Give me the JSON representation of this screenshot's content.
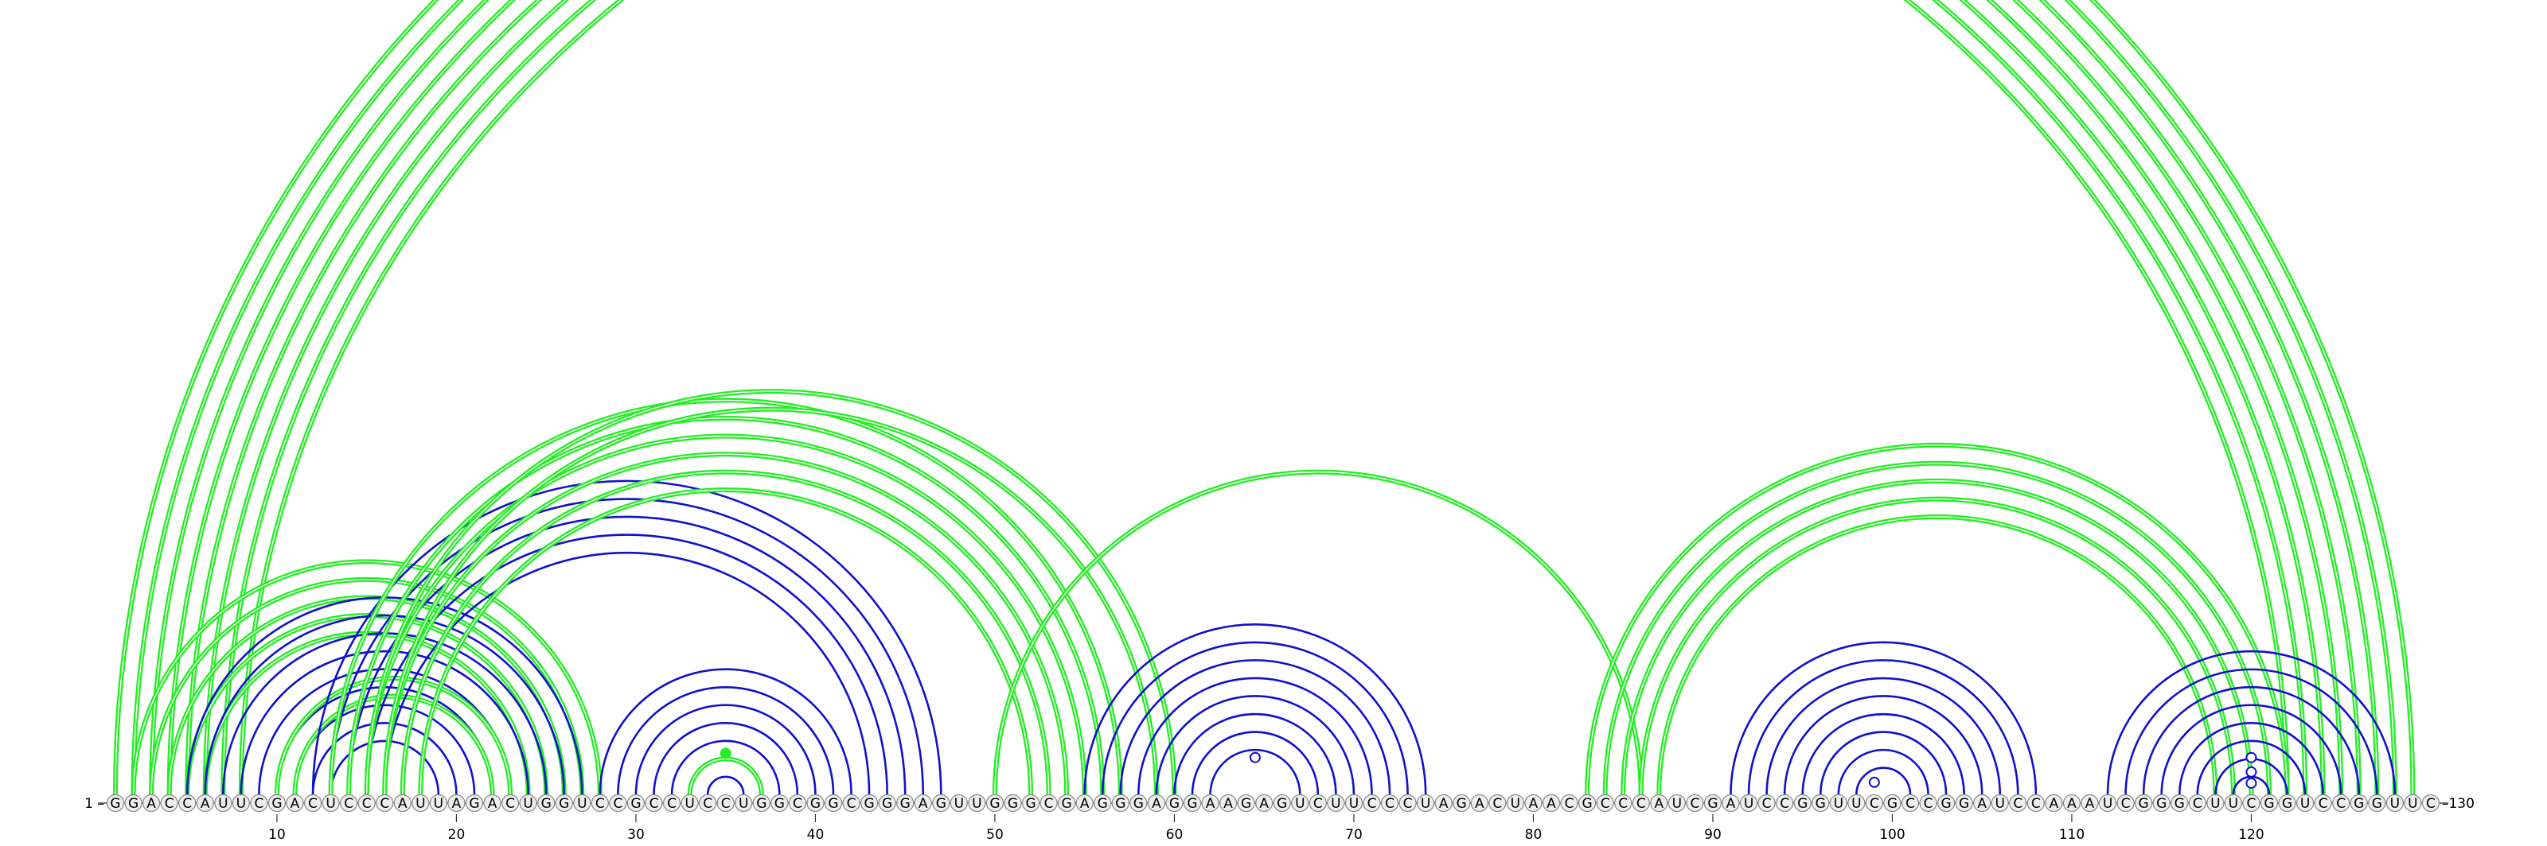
{
  "sequence": "GGACCAUUCGACUCCCAUUAGACUGGUCCGCCUCCUGGCGGCGGGAGUUGGGCGAGGGAGGAAGAGUCUUCCCUAGACUAACGCCCAUCGAUCCGGUUCGCCGGAUCCAAAUCGGGCUUCGGUCCGGUUC",
  "labels": {
    "start": "1 –",
    "end": "–130"
  },
  "ticks": [
    {
      "position": 10,
      "label": "10"
    },
    {
      "position": 20,
      "label": "20"
    },
    {
      "position": 30,
      "label": "30"
    },
    {
      "position": 40,
      "label": "40"
    },
    {
      "position": 50,
      "label": "50"
    },
    {
      "position": 60,
      "label": "60"
    },
    {
      "position": 70,
      "label": "70"
    },
    {
      "position": 80,
      "label": "80"
    },
    {
      "position": 90,
      "label": "90"
    },
    {
      "position": 100,
      "label": "100"
    },
    {
      "position": 110,
      "label": "110"
    },
    {
      "position": 120,
      "label": "120"
    }
  ],
  "colors": {
    "green": "#22ee22",
    "blue": "#1111cc",
    "node_fill": "#eeeeee",
    "node_stroke": "#888888",
    "text": "#000000"
  },
  "arc_groups": [
    {
      "color": "green",
      "double": true,
      "pairs": [
        [
          1,
          129
        ],
        [
          2,
          128
        ],
        [
          3,
          127
        ],
        [
          4,
          126
        ],
        [
          5,
          125
        ],
        [
          6,
          124
        ],
        [
          7,
          123
        ],
        [
          8,
          122
        ]
      ]
    },
    {
      "color": "green",
      "double": true,
      "pairs": [
        [
          2,
          28
        ],
        [
          3,
          27
        ],
        [
          4,
          26
        ],
        [
          5,
          25
        ],
        [
          6,
          24
        ]
      ]
    },
    {
      "color": "blue",
      "double": false,
      "pairs": [
        [
          5,
          27
        ],
        [
          6,
          26
        ],
        [
          7,
          25
        ],
        [
          8,
          24
        ],
        [
          9,
          23
        ],
        [
          10,
          22
        ],
        [
          11,
          21
        ],
        [
          12,
          20
        ],
        [
          13,
          19
        ]
      ]
    },
    {
      "color": "green",
      "double": true,
      "pairs": [
        [
          10,
          23
        ],
        [
          11,
          22
        ]
      ]
    },
    {
      "color": "blue",
      "double": false,
      "pairs": [
        [
          12,
          47
        ],
        [
          13,
          46
        ],
        [
          14,
          45
        ],
        [
          15,
          44
        ],
        [
          16,
          43
        ]
      ]
    },
    {
      "color": "green",
      "double": true,
      "pairs": [
        [
          13,
          57
        ],
        [
          14,
          56
        ],
        [
          15,
          55
        ],
        [
          16,
          54
        ],
        [
          17,
          53
        ],
        [
          18,
          52
        ]
      ]
    },
    {
      "color": "green",
      "double": true,
      "pairs": [
        [
          15,
          60
        ],
        [
          16,
          59
        ]
      ]
    },
    {
      "color": "blue",
      "double": false,
      "pairs": [
        [
          28,
          42
        ],
        [
          29,
          41
        ],
        [
          30,
          40
        ],
        [
          31,
          39
        ],
        [
          32,
          38
        ],
        [
          33,
          37
        ],
        [
          34,
          36
        ]
      ]
    },
    {
      "color": "green",
      "double": true,
      "pairs": [
        [
          33,
          37
        ]
      ]
    },
    {
      "color": "green",
      "double": true,
      "pairs": [
        [
          50,
          86
        ]
      ]
    },
    {
      "color": "blue",
      "double": false,
      "pairs": [
        [
          55,
          74
        ],
        [
          56,
          73
        ],
        [
          57,
          72
        ],
        [
          58,
          71
        ],
        [
          59,
          70
        ],
        [
          60,
          69
        ],
        [
          61,
          68
        ],
        [
          62,
          67
        ]
      ]
    },
    {
      "color": "green",
      "double": true,
      "pairs": [
        [
          83,
          122
        ],
        [
          84,
          121
        ],
        [
          85,
          120
        ],
        [
          86,
          119
        ],
        [
          87,
          118
        ]
      ]
    },
    {
      "color": "blue",
      "double": false,
      "pairs": [
        [
          91,
          108
        ],
        [
          92,
          107
        ],
        [
          93,
          106
        ],
        [
          94,
          105
        ],
        [
          95,
          104
        ],
        [
          96,
          103
        ],
        [
          97,
          102
        ],
        [
          98,
          101
        ]
      ]
    },
    {
      "color": "blue",
      "double": false,
      "pairs": [
        [
          112,
          128
        ],
        [
          113,
          127
        ],
        [
          114,
          126
        ],
        [
          115,
          125
        ],
        [
          116,
          124
        ],
        [
          117,
          123
        ],
        [
          118,
          122
        ],
        [
          119,
          121
        ]
      ]
    }
  ],
  "markers": [
    {
      "position": 35,
      "level": 1.0,
      "color": "green",
      "filled": true
    },
    {
      "position": 64.5,
      "level": 0.9,
      "color": "blue",
      "filled": false
    },
    {
      "position": 99,
      "level": 0.3,
      "color": "blue",
      "filled": false
    },
    {
      "position": 120,
      "level": 0.9,
      "color": "blue",
      "filled": false
    },
    {
      "position": 120,
      "level": 0.55,
      "color": "blue",
      "filled": false
    },
    {
      "position": 120,
      "level": 0.28,
      "color": "blue",
      "filled": false
    }
  ]
}
